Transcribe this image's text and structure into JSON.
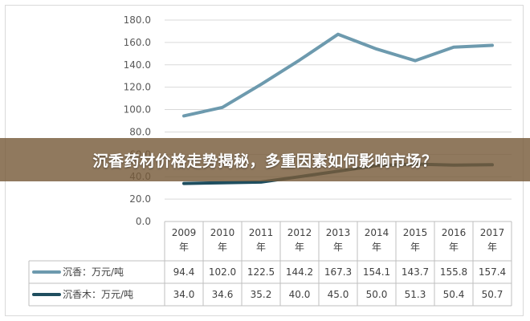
{
  "banner": {
    "title": "沉香药材价格走势揭秘，多重因素如何影响市场？"
  },
  "chart_data": {
    "type": "line",
    "title": "",
    "xlabel": "",
    "ylabel": "",
    "ylim": [
      0,
      180
    ],
    "yticks": [
      "0.0",
      "20.0",
      "40.0",
      "60.0",
      "80.0",
      "100.0",
      "120.0",
      "140.0",
      "160.0",
      "180.0"
    ],
    "categories": [
      "2009\n年",
      "2010\n年",
      "2011\n年",
      "2012\n年",
      "2013\n年",
      "2014\n年",
      "2015\n年",
      "2016\n年",
      "2017\n年"
    ],
    "grid": true,
    "legend": "data-table",
    "series": [
      {
        "name": "沉香：万元/吨",
        "color": "#6d9aae",
        "values": [
          94.4,
          102.0,
          122.5,
          144.2,
          167.3,
          154.1,
          143.7,
          155.8,
          157.4
        ],
        "labels": [
          "94.4",
          "102.0",
          "122.5",
          "144.2",
          "167.3",
          "154.1",
          "143.7",
          "155.8",
          "157.4"
        ]
      },
      {
        "name": "沉香木：万元/吨",
        "color": "#1f4e5f",
        "values": [
          34.0,
          34.6,
          35.2,
          40.0,
          45.0,
          50.0,
          51.3,
          50.4,
          50.7
        ],
        "labels": [
          "34.0",
          "34.6",
          "35.2",
          "40.0",
          "45.0",
          "50.0",
          "51.3",
          "50.4",
          "50.7"
        ]
      }
    ]
  }
}
